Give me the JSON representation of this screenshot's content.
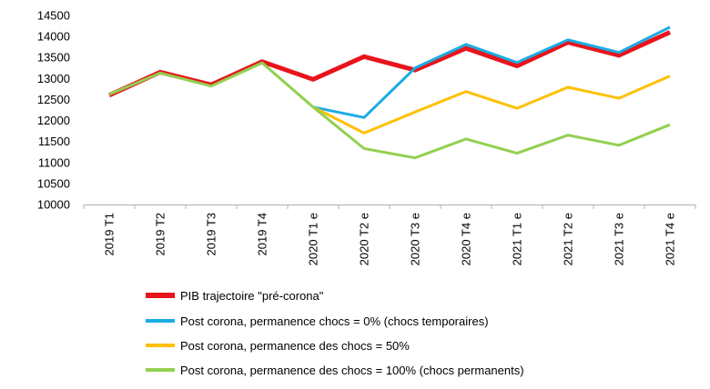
{
  "chart_data": {
    "type": "line",
    "categories": [
      "2019 T1",
      "2019 T2",
      "2019 T3",
      "2019 T4",
      "2020 T1 e",
      "2020 T2 e",
      "2020 T3 e",
      "2020 T4 e",
      "2021 T1 e",
      "2021 T2 e",
      "2021 T3 e",
      "2021 T4 e"
    ],
    "ylim": [
      10000,
      14500
    ],
    "yticks": [
      10000,
      10500,
      11000,
      11500,
      12000,
      12500,
      13000,
      13500,
      14000,
      14500
    ],
    "grid": false,
    "legend_position": "bottom",
    "series": [
      {
        "name": "PIB trajectoire \"pré-corona\"",
        "color": "#e8141c",
        "values": [
          12600,
          13150,
          12850,
          13400,
          12980,
          13520,
          13200,
          13720,
          13300,
          13860,
          13550,
          14100
        ]
      },
      {
        "name": "Post corona, permanence chocs = 0% (chocs temporaires)",
        "color": "#1cace4",
        "values": [
          null,
          null,
          null,
          null,
          12320,
          12070,
          13250,
          13810,
          13380,
          13920,
          13620,
          14220
        ]
      },
      {
        "name": "Post corona, permanence des chocs = 50%",
        "color": "#ffc000",
        "values": [
          null,
          null,
          null,
          null,
          12320,
          11700,
          12200,
          12690,
          12290,
          12790,
          12530,
          13060
        ]
      },
      {
        "name": "Post corona, permanence des chocs = 100% (chocs permanents)",
        "color": "#92d050",
        "values": [
          12620,
          13130,
          12820,
          13370,
          12320,
          11330,
          11110,
          11560,
          11220,
          11650,
          11410,
          11900
        ]
      }
    ]
  }
}
